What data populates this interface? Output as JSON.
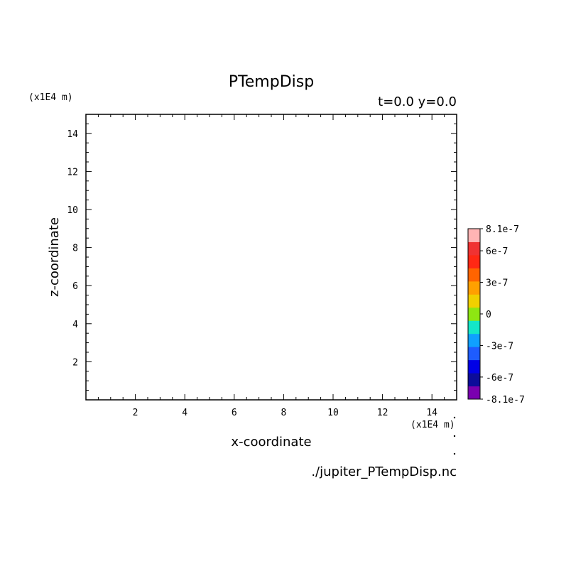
{
  "chart_data": {
    "type": "heatmap",
    "title": "PTempDisp",
    "time_slice": "t=0.0 y=0.0",
    "xlabel": "x-coordinate",
    "ylabel": "z-coordinate",
    "x_unit": "(x1E4 m)",
    "y_unit": "(x1E4 m)",
    "xlim": [
      0,
      15
    ],
    "ylim": [
      0,
      15
    ],
    "x_ticks": [
      2,
      4,
      6,
      8,
      10,
      12,
      14
    ],
    "y_ticks": [
      2,
      4,
      6,
      8,
      10,
      12,
      14
    ],
    "x_tick_labels": [
      "2",
      "4",
      "6",
      "8",
      "10",
      "12",
      "14"
    ],
    "y_tick_labels": [
      "2",
      "4",
      "6",
      "8",
      "10",
      "12",
      "14"
    ],
    "values": [],
    "grid": false,
    "colorbar": {
      "range": [
        -8.1e-07,
        8.1e-07
      ],
      "labels": [
        {
          "value": 8.1e-07,
          "text": "8.1e-7"
        },
        {
          "value": 6e-07,
          "text": "6e-7"
        },
        {
          "value": 3e-07,
          "text": "3e-7"
        },
        {
          "value": 0,
          "text": "0"
        },
        {
          "value": -3e-07,
          "text": "-3e-7"
        },
        {
          "value": -6e-07,
          "text": "-6e-7"
        },
        {
          "value": -8.1e-07,
          "text": "-8.1e-7"
        }
      ],
      "colors": [
        "#7a00b0",
        "#0c0c9a",
        "#0000e6",
        "#1e5cff",
        "#0fa0ff",
        "#14e6c8",
        "#8ee612",
        "#f0d000",
        "#ffa000",
        "#ff6400",
        "#ff2814",
        "#f03232",
        "#ffb4b4"
      ]
    },
    "source_file": "./jupiter_PTempDisp.nc"
  }
}
